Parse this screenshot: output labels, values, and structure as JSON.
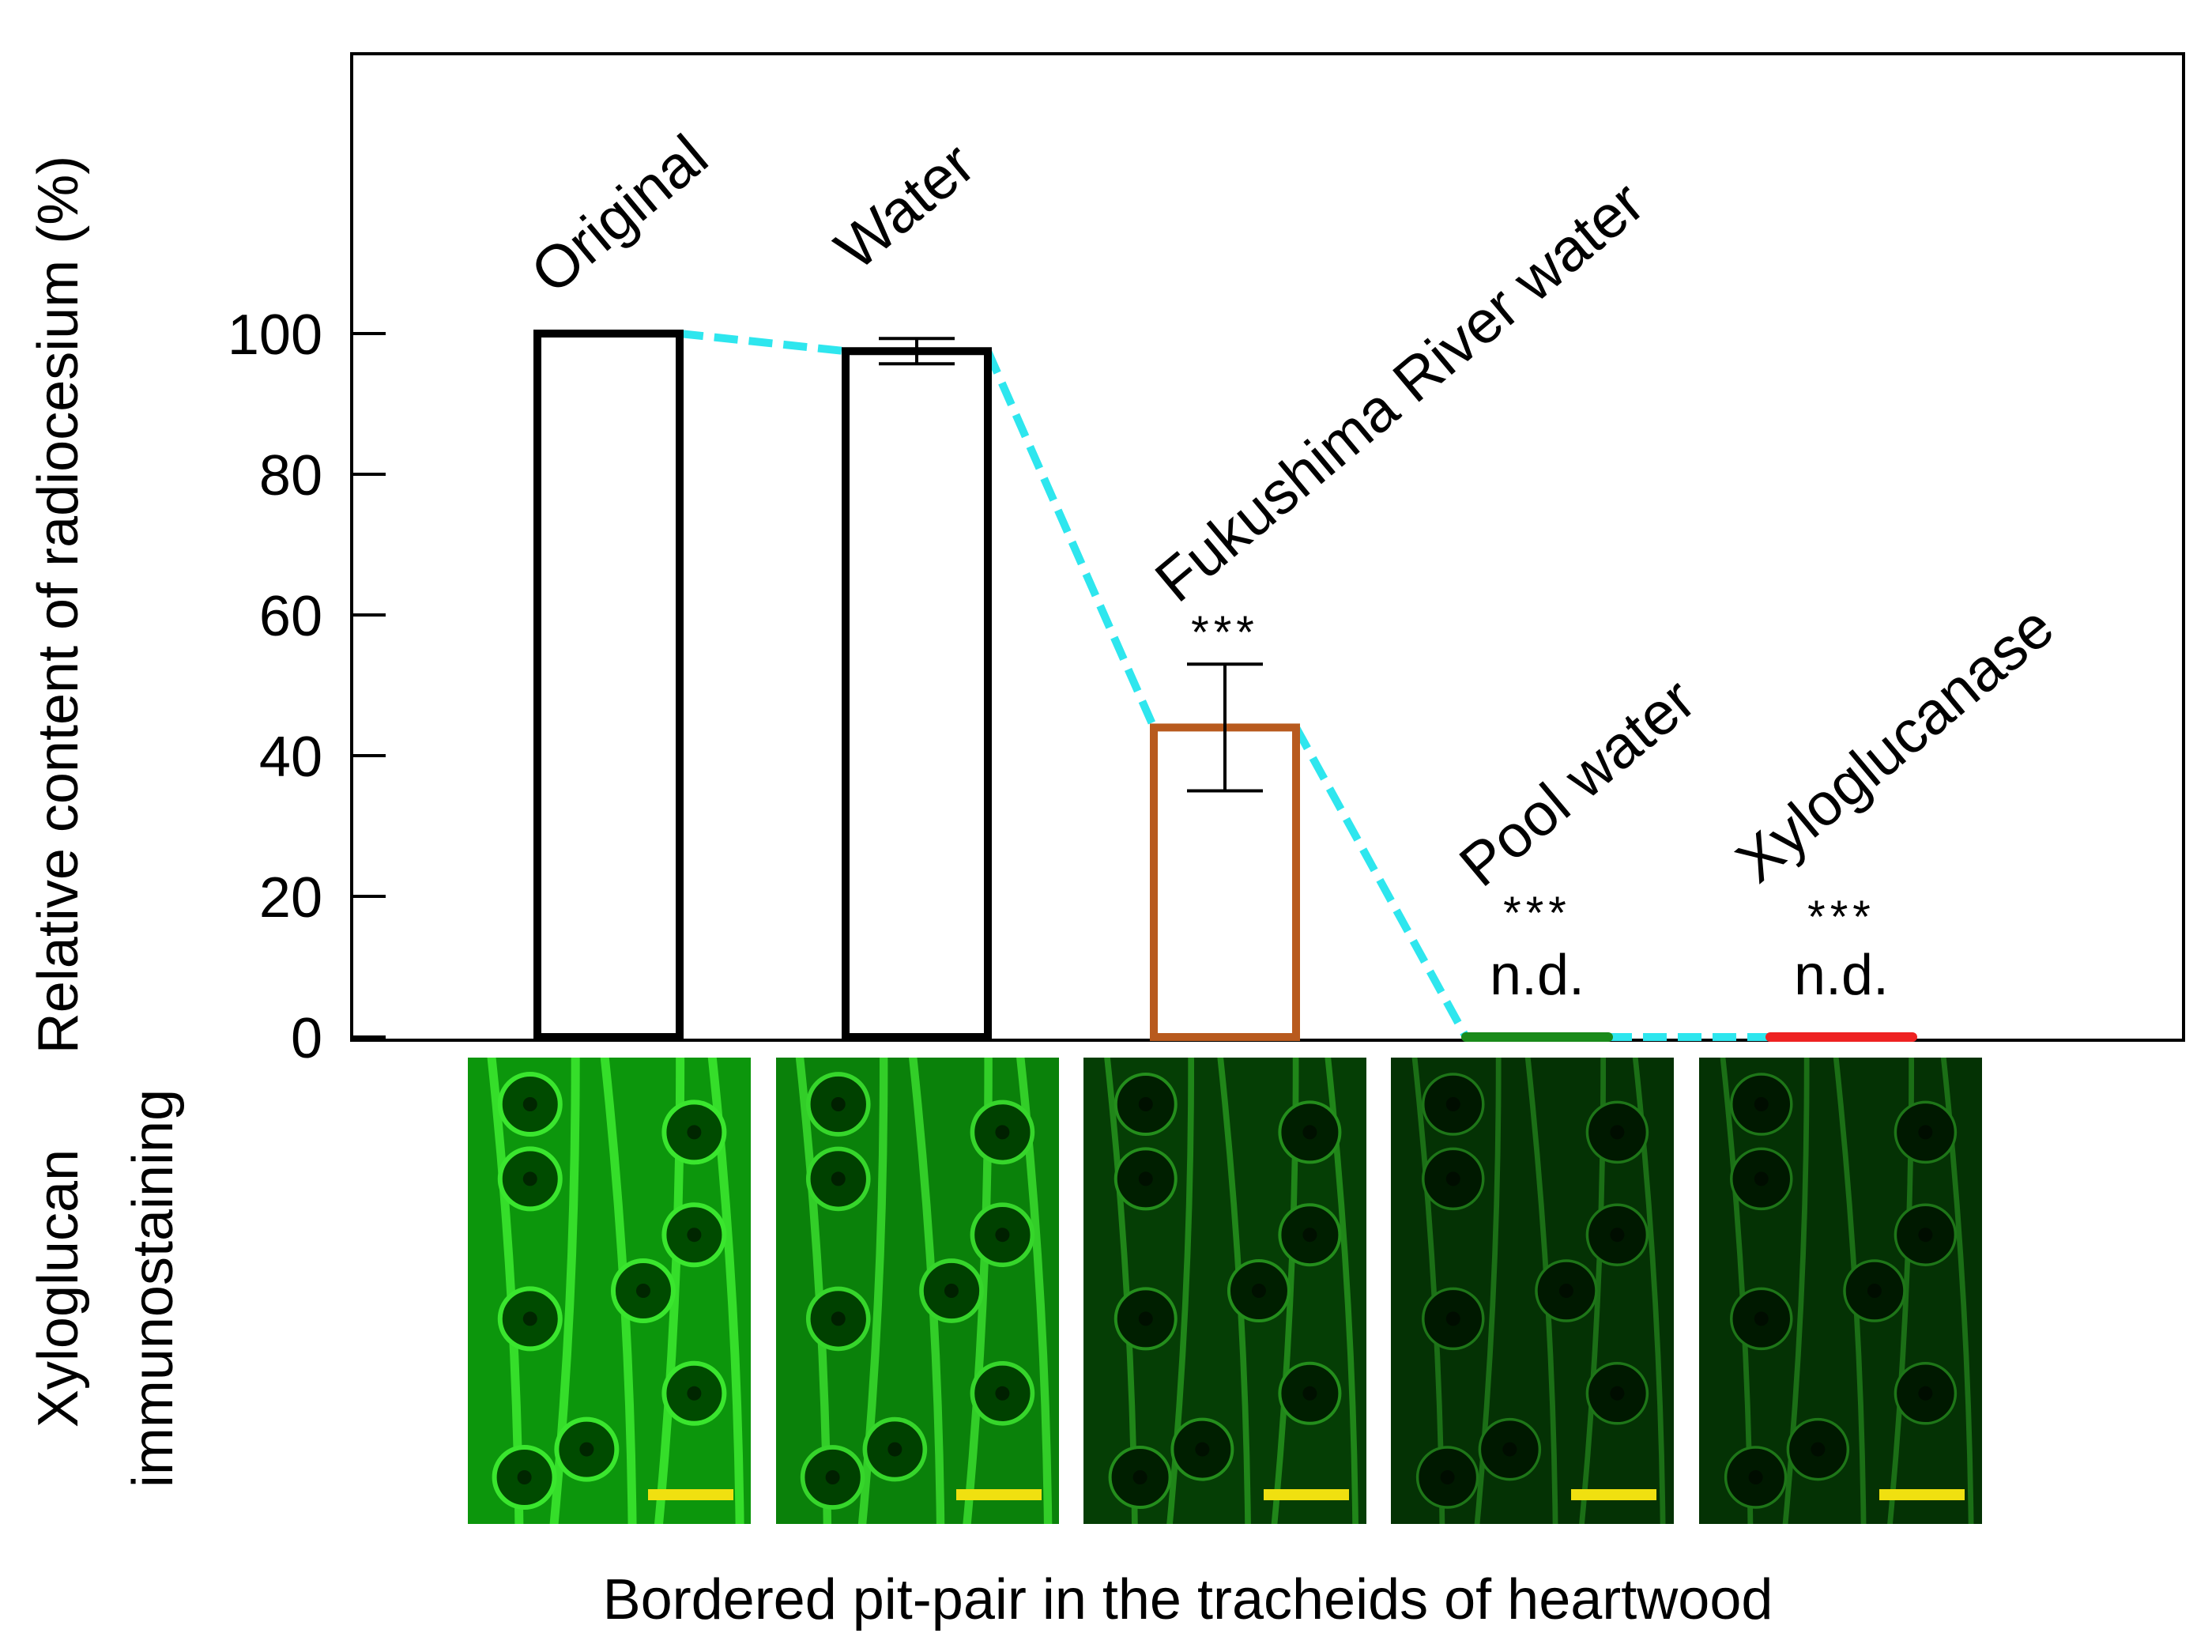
{
  "chart_data": {
    "type": "bar",
    "ylabel": "Relative content of radiocesium (%)",
    "xlabel": "Bordered pit-pair in the tracheids of heartwood",
    "ylim": [
      0,
      140
    ],
    "yticks": [
      0,
      20,
      40,
      60,
      80,
      100
    ],
    "categories": [
      "Original",
      "Water",
      "Fukushima River water",
      "Pool water",
      "Xyloglucanase"
    ],
    "values": [
      100,
      97.5,
      44,
      0,
      0
    ],
    "errors": [
      null,
      1.8,
      9,
      null,
      null
    ],
    "significance": [
      "",
      "",
      "***",
      "***",
      "***"
    ],
    "value_labels": [
      "",
      "",
      "",
      "n.d.",
      "n.d."
    ],
    "bar_colors": [
      "#000000",
      "#000000",
      "#b85a1e",
      "#1a8a1a",
      "#ee2222"
    ],
    "trend_line_color": "#2ee6ee",
    "image_row_label": [
      "Xyloglucan",
      "immunostaining"
    ],
    "scale_bar_color": "#f0e010",
    "image_brightness": [
      1.0,
      0.9,
      0.45,
      0.3,
      0.3
    ],
    "grid": false,
    "legend": "none"
  }
}
